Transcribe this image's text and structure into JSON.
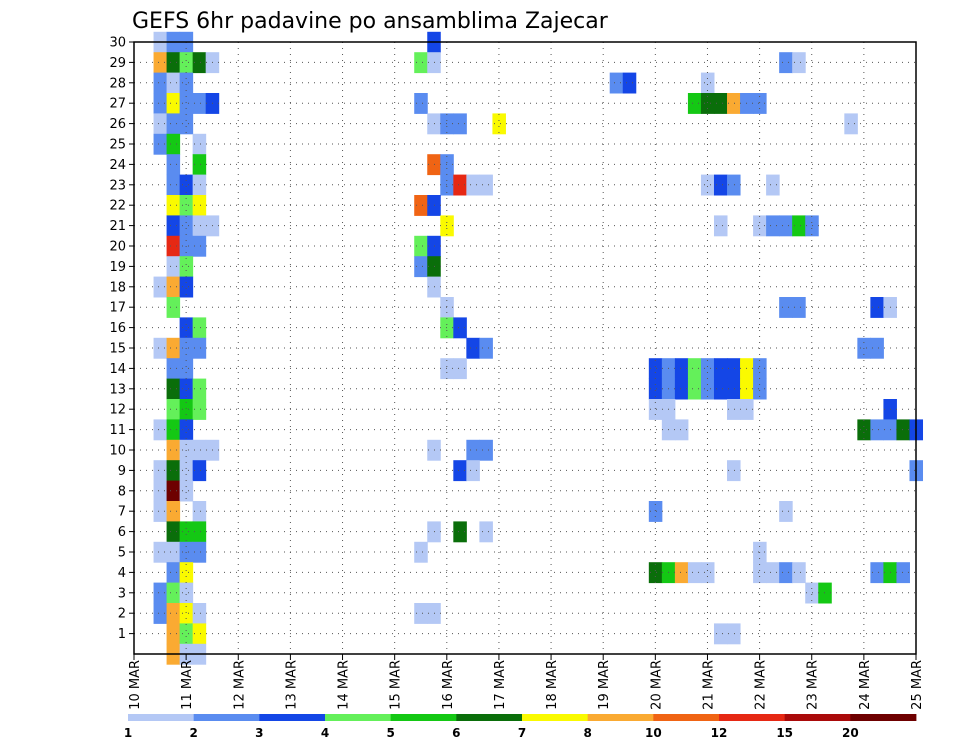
{
  "chart_data": {
    "type": "heatmap",
    "title": "GEFS 6hr padavine po ansamblima Zajecar",
    "xlabel": "",
    "ylabel": "",
    "x_ticks": [
      "10 MAR",
      "11 MAR",
      "12 MAR",
      "13 MAR",
      "14 MAR",
      "15 MAR",
      "16 MAR",
      "17 MAR",
      "18 MAR",
      "19 MAR",
      "20 MAR",
      "21 MAR",
      "22 MAR",
      "23 MAR",
      "24 MAR",
      "25 MAR"
    ],
    "y_ticks": [
      1,
      2,
      3,
      4,
      5,
      6,
      7,
      8,
      9,
      10,
      11,
      12,
      13,
      14,
      15,
      16,
      17,
      18,
      19,
      20,
      21,
      22,
      23,
      24,
      25,
      26,
      27,
      28,
      29,
      30
    ],
    "xlim": [
      0,
      60
    ],
    "ylim": [
      0,
      30
    ],
    "grid": true,
    "colorbar": {
      "orientation": "horizontal",
      "position": "bottom",
      "levels": [
        "1",
        "2",
        "3",
        "4",
        "5",
        "6",
        "7",
        "8",
        "10",
        "12",
        "15",
        "20"
      ],
      "colors": [
        "#b4c8f5",
        "#5a8cf0",
        "#1446e6",
        "#64f05a",
        "#14c814",
        "#0a6e0a",
        "#fafa00",
        "#faaa32",
        "#f06414",
        "#e62814",
        "#aa0a0a",
        "#6e0000"
      ]
    },
    "cells": [
      [
        30,
        "2007-03-10 12",
        1
      ],
      [
        30,
        "2007-03-10 18",
        2
      ],
      [
        30,
        "2007-03-11 00",
        2
      ],
      [
        30,
        "2007-03-15 18",
        3
      ],
      [
        29,
        "2007-03-10 12",
        8
      ],
      [
        29,
        "2007-03-10 18",
        6
      ],
      [
        29,
        "2007-03-11 00",
        4
      ],
      [
        29,
        "2007-03-11 06",
        6
      ],
      [
        29,
        "2007-03-11 12",
        1
      ],
      [
        29,
        "2007-03-15 12",
        4
      ],
      [
        29,
        "2007-03-15 18",
        1
      ],
      [
        29,
        "2007-03-22 12",
        2
      ],
      [
        29,
        "2007-03-22 18",
        1
      ],
      [
        28,
        "2007-03-10 12",
        2
      ],
      [
        28,
        "2007-03-10 18",
        1
      ],
      [
        28,
        "2007-03-11 00",
        2
      ],
      [
        28,
        "2007-03-19 06",
        2
      ],
      [
        28,
        "2007-03-19 12",
        3
      ],
      [
        28,
        "2007-03-21 00",
        1
      ],
      [
        27,
        "2007-03-10 12",
        2
      ],
      [
        27,
        "2007-03-10 18",
        7
      ],
      [
        27,
        "2007-03-11 00",
        2
      ],
      [
        27,
        "2007-03-11 06",
        2
      ],
      [
        27,
        "2007-03-11 12",
        3
      ],
      [
        27,
        "2007-03-15 12",
        2
      ],
      [
        27,
        "2007-03-20 18",
        5
      ],
      [
        27,
        "2007-03-21 00",
        6
      ],
      [
        27,
        "2007-03-21 06",
        6
      ],
      [
        27,
        "2007-03-21 12",
        8
      ],
      [
        27,
        "2007-03-21 18",
        2
      ],
      [
        27,
        "2007-03-22 00",
        2
      ],
      [
        26,
        "2007-03-10 12",
        1
      ],
      [
        26,
        "2007-03-10 18",
        2
      ],
      [
        26,
        "2007-03-11 00",
        2
      ],
      [
        26,
        "2007-03-15 18",
        1
      ],
      [
        26,
        "2007-03-16 00",
        2
      ],
      [
        26,
        "2007-03-16 06",
        2
      ],
      [
        26,
        "2007-03-17 00",
        7
      ],
      [
        26,
        "2007-03-23 18",
        1
      ],
      [
        25,
        "2007-03-10 12",
        2
      ],
      [
        25,
        "2007-03-10 18",
        5
      ],
      [
        25,
        "2007-03-11 06",
        1
      ],
      [
        24,
        "2007-03-10 18",
        2
      ],
      [
        24,
        "2007-03-11 06",
        5
      ],
      [
        24,
        "2007-03-15 18",
        9
      ],
      [
        24,
        "2007-03-16 00",
        2
      ],
      [
        23,
        "2007-03-10 18",
        2
      ],
      [
        23,
        "2007-03-11 00",
        3
      ],
      [
        23,
        "2007-03-11 06",
        1
      ],
      [
        23,
        "2007-03-16 00",
        2
      ],
      [
        23,
        "2007-03-16 06",
        10
      ],
      [
        23,
        "2007-03-16 12",
        1
      ],
      [
        23,
        "2007-03-16 18",
        1
      ],
      [
        23,
        "2007-03-21 00",
        1
      ],
      [
        23,
        "2007-03-21 06",
        3
      ],
      [
        23,
        "2007-03-21 12",
        2
      ],
      [
        23,
        "2007-03-22 06",
        1
      ],
      [
        22,
        "2007-03-10 18",
        7
      ],
      [
        22,
        "2007-03-11 00",
        4
      ],
      [
        22,
        "2007-03-11 06",
        7
      ],
      [
        22,
        "2007-03-15 12",
        9
      ],
      [
        22,
        "2007-03-15 18",
        3
      ],
      [
        21,
        "2007-03-10 18",
        3
      ],
      [
        21,
        "2007-03-11 00",
        2
      ],
      [
        21,
        "2007-03-11 06",
        1
      ],
      [
        21,
        "2007-03-11 12",
        1
      ],
      [
        21,
        "2007-03-16 00",
        7
      ],
      [
        21,
        "2007-03-21 06",
        1
      ],
      [
        21,
        "2007-03-22 00",
        1
      ],
      [
        21,
        "2007-03-22 06",
        2
      ],
      [
        21,
        "2007-03-22 12",
        2
      ],
      [
        21,
        "2007-03-22 18",
        5
      ],
      [
        21,
        "2007-03-23 00",
        2
      ],
      [
        20,
        "2007-03-10 18",
        10
      ],
      [
        20,
        "2007-03-11 00",
        2
      ],
      [
        20,
        "2007-03-11 06",
        2
      ],
      [
        20,
        "2007-03-15 12",
        4
      ],
      [
        20,
        "2007-03-15 18",
        3
      ],
      [
        19,
        "2007-03-10 18",
        1
      ],
      [
        19,
        "2007-03-11 00",
        4
      ],
      [
        19,
        "2007-03-15 12",
        2
      ],
      [
        19,
        "2007-03-15 18",
        6
      ],
      [
        18,
        "2007-03-10 12",
        1
      ],
      [
        18,
        "2007-03-10 18",
        8
      ],
      [
        18,
        "2007-03-11 00",
        3
      ],
      [
        18,
        "2007-03-15 18",
        1
      ],
      [
        17,
        "2007-03-10 18",
        4
      ],
      [
        17,
        "2007-03-16 00",
        1
      ],
      [
        17,
        "2007-03-22 12",
        2
      ],
      [
        17,
        "2007-03-22 18",
        2
      ],
      [
        17,
        "2007-03-24 06",
        3
      ],
      [
        17,
        "2007-03-24 12",
        1
      ],
      [
        16,
        "2007-03-11 00",
        3
      ],
      [
        16,
        "2007-03-11 06",
        4
      ],
      [
        16,
        "2007-03-16 00",
        4
      ],
      [
        16,
        "2007-03-16 06",
        3
      ],
      [
        15,
        "2007-03-10 12",
        1
      ],
      [
        15,
        "2007-03-10 18",
        8
      ],
      [
        15,
        "2007-03-11 00",
        2
      ],
      [
        15,
        "2007-03-11 06",
        2
      ],
      [
        15,
        "2007-03-16 12",
        3
      ],
      [
        15,
        "2007-03-16 18",
        2
      ],
      [
        15,
        "2007-03-24 00",
        2
      ],
      [
        15,
        "2007-03-24 06",
        2
      ],
      [
        14,
        "2007-03-10 18",
        2
      ],
      [
        14,
        "2007-03-11 00",
        2
      ],
      [
        14,
        "2007-03-16 00",
        1
      ],
      [
        14,
        "2007-03-16 06",
        1
      ],
      [
        14,
        "2007-03-20 00",
        3
      ],
      [
        14,
        "2007-03-20 06",
        2
      ],
      [
        14,
        "2007-03-20 12",
        3
      ],
      [
        14,
        "2007-03-20 18",
        4
      ],
      [
        14,
        "2007-03-21 00",
        2
      ],
      [
        14,
        "2007-03-21 06",
        3
      ],
      [
        14,
        "2007-03-21 12",
        3
      ],
      [
        14,
        "2007-03-21 18",
        7
      ],
      [
        14,
        "2007-03-22 00",
        2
      ],
      [
        13,
        "2007-03-10 18",
        6
      ],
      [
        13,
        "2007-03-11 00",
        3
      ],
      [
        13,
        "2007-03-11 06",
        4
      ],
      [
        13,
        "2007-03-20 00",
        3
      ],
      [
        13,
        "2007-03-20 06",
        2
      ],
      [
        13,
        "2007-03-20 12",
        3
      ],
      [
        13,
        "2007-03-20 18",
        4
      ],
      [
        13,
        "2007-03-21 00",
        2
      ],
      [
        13,
        "2007-03-21 06",
        3
      ],
      [
        13,
        "2007-03-21 12",
        3
      ],
      [
        13,
        "2007-03-21 18",
        7
      ],
      [
        13,
        "2007-03-22 00",
        2
      ],
      [
        12,
        "2007-03-10 18",
        4
      ],
      [
        12,
        "2007-03-11 00",
        5
      ],
      [
        12,
        "2007-03-11 06",
        4
      ],
      [
        12,
        "2007-03-20 00",
        1
      ],
      [
        12,
        "2007-03-20 06",
        1
      ],
      [
        12,
        "2007-03-21 12",
        1
      ],
      [
        12,
        "2007-03-21 18",
        1
      ],
      [
        12,
        "2007-03-24 12",
        3
      ],
      [
        11,
        "2007-03-10 12",
        1
      ],
      [
        11,
        "2007-03-10 18",
        5
      ],
      [
        11,
        "2007-03-11 00",
        3
      ],
      [
        11,
        "2007-03-20 06",
        1
      ],
      [
        11,
        "2007-03-20 12",
        1
      ],
      [
        11,
        "2007-03-24 00",
        6
      ],
      [
        11,
        "2007-03-24 06",
        2
      ],
      [
        11,
        "2007-03-24 12",
        2
      ],
      [
        11,
        "2007-03-24 18",
        6
      ],
      [
        11,
        "2007-03-25 00",
        3
      ],
      [
        10,
        "2007-03-10 18",
        8
      ],
      [
        10,
        "2007-03-11 00",
        1
      ],
      [
        10,
        "2007-03-11 06",
        1
      ],
      [
        10,
        "2007-03-11 12",
        1
      ],
      [
        10,
        "2007-03-15 18",
        1
      ],
      [
        10,
        "2007-03-16 12",
        2
      ],
      [
        10,
        "2007-03-16 18",
        2
      ],
      [
        9,
        "2007-03-10 12",
        1
      ],
      [
        9,
        "2007-03-10 18",
        6
      ],
      [
        9,
        "2007-03-11 00",
        1
      ],
      [
        9,
        "2007-03-11 06",
        3
      ],
      [
        9,
        "2007-03-16 06",
        3
      ],
      [
        9,
        "2007-03-16 12",
        1
      ],
      [
        9,
        "2007-03-21 12",
        1
      ],
      [
        9,
        "2007-03-25 00",
        2
      ],
      [
        8,
        "2007-03-10 12",
        1
      ],
      [
        8,
        "2007-03-10 18",
        12
      ],
      [
        8,
        "2007-03-11 00",
        1
      ],
      [
        7,
        "2007-03-10 12",
        1
      ],
      [
        7,
        "2007-03-10 18",
        8
      ],
      [
        7,
        "2007-03-11 06",
        1
      ],
      [
        7,
        "2007-03-20 00",
        2
      ],
      [
        7,
        "2007-03-22 12",
        1
      ],
      [
        6,
        "2007-03-10 18",
        6
      ],
      [
        6,
        "2007-03-11 00",
        5
      ],
      [
        6,
        "2007-03-11 06",
        5
      ],
      [
        6,
        "2007-03-15 18",
        1
      ],
      [
        6,
        "2007-03-16 06",
        6
      ],
      [
        6,
        "2007-03-16 18",
        1
      ],
      [
        5,
        "2007-03-10 12",
        1
      ],
      [
        5,
        "2007-03-10 18",
        1
      ],
      [
        5,
        "2007-03-11 00",
        2
      ],
      [
        5,
        "2007-03-11 06",
        2
      ],
      [
        5,
        "2007-03-15 12",
        1
      ],
      [
        5,
        "2007-03-22 00",
        1
      ],
      [
        4,
        "2007-03-10 18",
        2
      ],
      [
        4,
        "2007-03-11 00",
        7
      ],
      [
        4,
        "2007-03-20 00",
        6
      ],
      [
        4,
        "2007-03-20 06",
        5
      ],
      [
        4,
        "2007-03-20 12",
        8
      ],
      [
        4,
        "2007-03-20 18",
        1
      ],
      [
        4,
        "2007-03-21 00",
        1
      ],
      [
        4,
        "2007-03-22 00",
        1
      ],
      [
        4,
        "2007-03-22 06",
        1
      ],
      [
        4,
        "2007-03-22 12",
        2
      ],
      [
        4,
        "2007-03-22 18",
        1
      ],
      [
        4,
        "2007-03-24 06",
        2
      ],
      [
        4,
        "2007-03-24 12",
        5
      ],
      [
        4,
        "2007-03-24 18",
        2
      ],
      [
        3,
        "2007-03-10 12",
        2
      ],
      [
        3,
        "2007-03-10 18",
        4
      ],
      [
        3,
        "2007-03-11 00",
        1
      ],
      [
        3,
        "2007-03-23 00",
        1
      ],
      [
        3,
        "2007-03-23 06",
        5
      ],
      [
        2,
        "2007-03-10 12",
        2
      ],
      [
        2,
        "2007-03-10 18",
        8
      ],
      [
        2,
        "2007-03-11 00",
        7
      ],
      [
        2,
        "2007-03-11 06",
        1
      ],
      [
        2,
        "2007-03-15 12",
        1
      ],
      [
        2,
        "2007-03-15 18",
        1
      ],
      [
        1,
        "2007-03-10 18",
        8
      ],
      [
        1,
        "2007-03-11 00",
        4
      ],
      [
        1,
        "2007-03-11 06",
        7
      ],
      [
        1,
        "2007-03-21 06",
        1
      ],
      [
        1,
        "2007-03-21 12",
        1
      ],
      [
        0,
        "2007-03-10 18",
        8
      ],
      [
        0,
        "2007-03-11 00",
        1
      ],
      [
        0,
        "2007-03-11 06",
        1
      ]
    ]
  }
}
